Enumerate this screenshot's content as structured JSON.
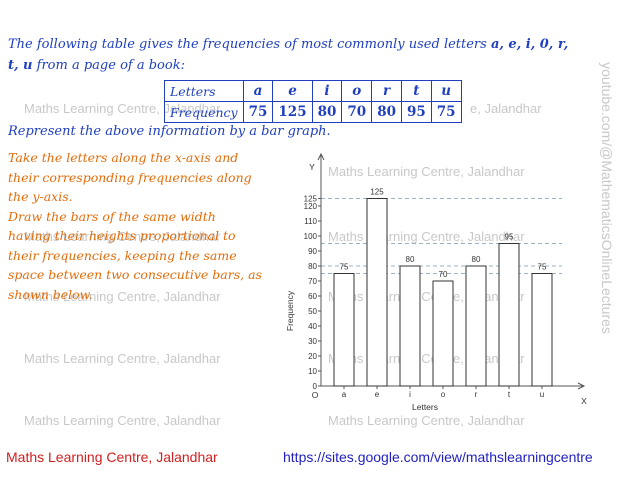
{
  "intro": {
    "line1_prefix": "The following table gives the frequencies of most commonly used letters ",
    "line1_letters": "a, e, i, 0, r,",
    "line2_letters": "t, u",
    "line2_suffix": " from a page of a book:"
  },
  "table": {
    "row1_label": "Letters",
    "row2_label": "Frequency",
    "letters": [
      "a",
      "e",
      "i",
      "o",
      "r",
      "t",
      "u"
    ],
    "frequencies": [
      "75",
      "125",
      "80",
      "70",
      "80",
      "95",
      "75"
    ]
  },
  "represent": "Represent the above information by a bar graph.",
  "instructions": [
    "Take the letters along the x-axis and",
    "their corresponding frequencies along",
    "the y-axis.",
    "Draw the bars of the same width",
    "having their heights proportional to",
    "their frequencies, keeping the same",
    "space between two consecutive bars, as",
    "shown below."
  ],
  "watermarks": {
    "text": "Maths Learning Centre, Jalandhar",
    "vertical": "youtube.com/@MathematicsOnlineLectures"
  },
  "footer": {
    "left": "Maths Learning Centre, Jalandhar",
    "right": "https://sites.google.com/view/mathslearningcentre"
  },
  "chart_data": {
    "type": "bar",
    "categories": [
      "a",
      "e",
      "i",
      "o",
      "r",
      "t",
      "u"
    ],
    "values": [
      75,
      125,
      80,
      70,
      80,
      95,
      75
    ],
    "data_labels": [
      "75",
      "125",
      "80",
      "70",
      "80",
      "95",
      "75"
    ],
    "xlabel": "Letters",
    "ylabel": "Frequency",
    "x_axis_name": "X",
    "y_axis_name": "Y",
    "origin_label": "O",
    "yticks": [
      0,
      10,
      20,
      30,
      40,
      50,
      60,
      70,
      80,
      90,
      100,
      110,
      120,
      125
    ],
    "ylim": [
      0,
      140
    ],
    "guide_lines": [
      125,
      95,
      80,
      75
    ],
    "grid": false,
    "colors": {
      "bar_fill": "#ffffff",
      "bar_stroke": "#333333",
      "guide": "#7a9ab8"
    }
  }
}
